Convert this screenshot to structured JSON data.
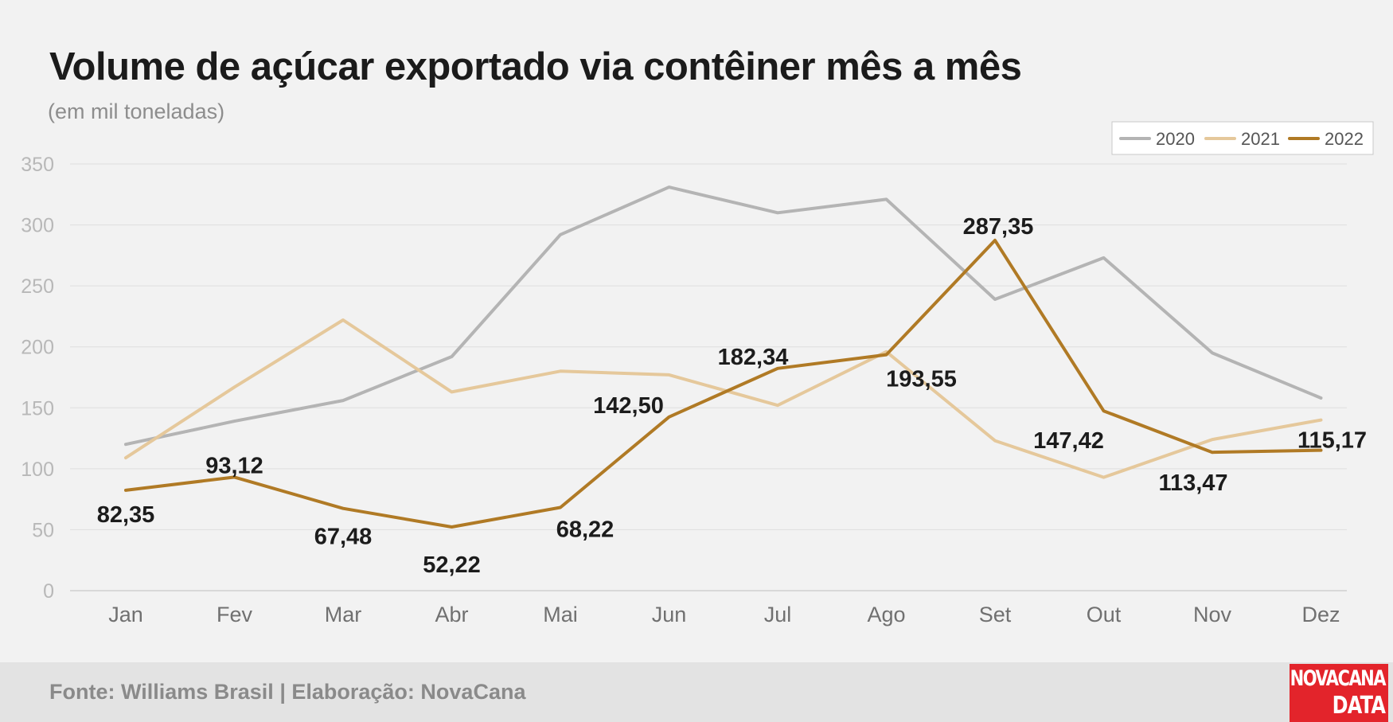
{
  "header": {
    "title": "Volume de açúcar exportado via contêiner mês a mês",
    "subtitle": "(em mil toneladas)"
  },
  "footer": {
    "source": "Fonte: Williams Brasil | Elaboração: NovaCana",
    "logo_line1": "NOVACANA",
    "logo_line2": "DATA"
  },
  "colors": {
    "2020": "#b4b4b4",
    "2021": "#e5c89b",
    "2022": "#b07a25",
    "logo": "#e3242b"
  },
  "chart_data": {
    "type": "line",
    "title": "Volume de açúcar exportado via contêiner mês a mês",
    "subtitle": "(em mil toneladas)",
    "xlabel": "",
    "ylabel": "",
    "ylim": [
      0,
      350
    ],
    "yticks": [
      0,
      50,
      100,
      150,
      200,
      250,
      300,
      350
    ],
    "grid": true,
    "legend_position": "top-right",
    "categories": [
      "Jan",
      "Fev",
      "Mar",
      "Abr",
      "Mai",
      "Jun",
      "Jul",
      "Ago",
      "Set",
      "Out",
      "Nov",
      "Dez"
    ],
    "series": [
      {
        "name": "2020",
        "values": [
          120,
          139,
          156,
          192,
          292,
          331,
          310,
          321,
          239,
          273,
          195,
          158
        ]
      },
      {
        "name": "2021",
        "values": [
          109,
          167,
          222,
          163,
          180,
          177,
          152,
          196,
          123,
          93,
          124,
          140
        ]
      },
      {
        "name": "2022",
        "values": [
          82.35,
          93.12,
          67.48,
          52.22,
          68.22,
          142.5,
          182.34,
          193.55,
          287.35,
          147.42,
          113.47,
          115.17
        ],
        "labels": [
          "82,35",
          "93,12",
          "67,48",
          "52,22",
          "68,22",
          "142,50",
          "182,34",
          "193,55",
          "287,35",
          "147,42",
          "113,47",
          "115,17"
        ]
      }
    ]
  }
}
